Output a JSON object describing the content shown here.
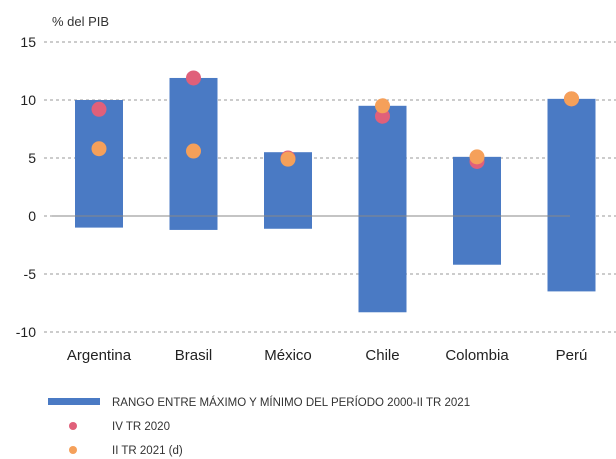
{
  "chart_data": {
    "type": "bar",
    "unit_label": "% del PIB",
    "categories": [
      "Argentina",
      "Brasil",
      "México",
      "Chile",
      "Colombia",
      "Perú"
    ],
    "ylim": [
      -10,
      15
    ],
    "yticks": [
      15,
      10,
      5,
      0,
      -5,
      -10
    ],
    "ytick_labels": [
      "15",
      "10",
      "5",
      "0",
      "-5",
      "-10"
    ],
    "grid": "horizontal-dashed",
    "series": [
      {
        "name": "RANGO ENTRE MÁXIMO Y MÍNIMO DEL PERÍODO 2000-II TR 2021",
        "kind": "range-bar",
        "color": "#4a7ac4",
        "min": [
          -1.0,
          -1.2,
          -1.1,
          -8.3,
          -4.2,
          -6.5
        ],
        "max": [
          10.0,
          11.9,
          5.5,
          9.5,
          5.1,
          10.1
        ]
      },
      {
        "name": "IV TR 2020",
        "kind": "point",
        "color": "#e0607a",
        "values": [
          9.2,
          11.9,
          5.0,
          8.6,
          4.7,
          10.1
        ]
      },
      {
        "name": "II TR 2021 (d)",
        "kind": "point",
        "color": "#f5a05a",
        "values": [
          5.8,
          5.6,
          4.9,
          9.5,
          5.1,
          10.1
        ]
      }
    ],
    "legend_position": "bottom-left"
  }
}
